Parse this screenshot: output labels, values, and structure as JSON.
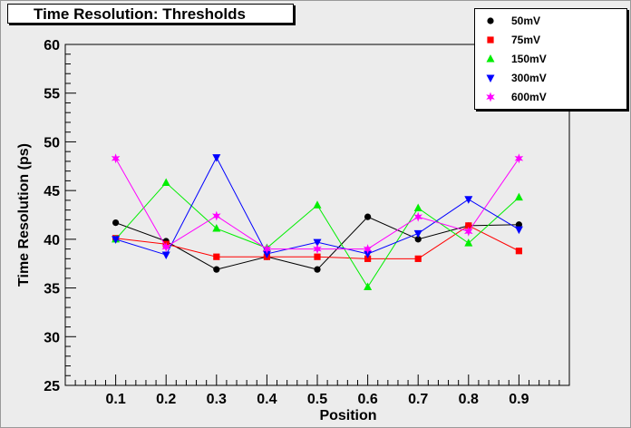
{
  "chart_data": {
    "type": "line",
    "title": "Time Resolution: Thresholds",
    "xlabel": "Position",
    "ylabel": "Time Resolution (ps)",
    "x": [
      0.1,
      0.2,
      0.3,
      0.4,
      0.5,
      0.6,
      0.7,
      0.8,
      0.9
    ],
    "xlim": [
      0.0,
      1.0
    ],
    "ylim": [
      25,
      60
    ],
    "xticks": [
      "0.1",
      "0.2",
      "0.3",
      "0.4",
      "0.5",
      "0.6",
      "0.7",
      "0.8",
      "0.9"
    ],
    "yticks": [
      "25",
      "30",
      "35",
      "40",
      "45",
      "50",
      "55",
      "60"
    ],
    "legend_position": "top-right",
    "grid": false,
    "series": [
      {
        "name": "50mV",
        "color": "#000000",
        "marker": "circle",
        "values": [
          41.7,
          39.8,
          36.9,
          38.2,
          36.9,
          42.3,
          40.0,
          41.4,
          41.5
        ]
      },
      {
        "name": "75mV",
        "color": "#ff0000",
        "marker": "square",
        "values": [
          40.1,
          39.5,
          38.2,
          38.2,
          38.2,
          38.0,
          38.0,
          41.4,
          38.8
        ]
      },
      {
        "name": "150mV",
        "color": "#00ee00",
        "marker": "triangle-up",
        "values": [
          40.0,
          45.8,
          41.1,
          39.1,
          43.5,
          35.1,
          43.2,
          39.6,
          44.3
        ]
      },
      {
        "name": "300mV",
        "color": "#0000ff",
        "marker": "triangle-down",
        "values": [
          40.0,
          38.4,
          48.4,
          38.5,
          39.7,
          38.5,
          40.6,
          44.1,
          41.0
        ]
      },
      {
        "name": "600mV",
        "color": "#ff00ff",
        "marker": "star",
        "values": [
          48.3,
          39.2,
          42.4,
          39.0,
          39.0,
          39.0,
          42.3,
          40.8,
          48.3
        ]
      }
    ]
  }
}
